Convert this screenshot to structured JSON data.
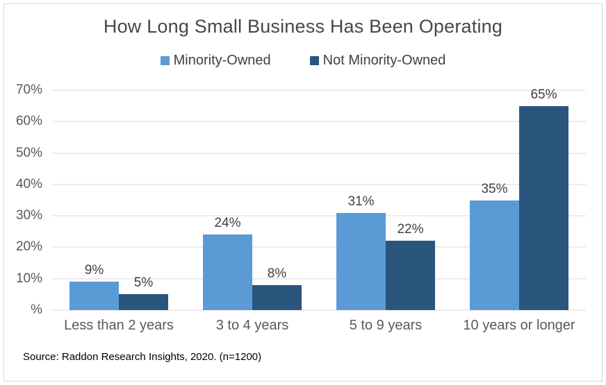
{
  "chart_data": {
    "type": "bar",
    "title": "How Long Small Business Has Been Operating",
    "categories": [
      "Less than 2 years",
      "3 to 4 years",
      "5 to 9 years",
      "10 years or longer"
    ],
    "series": [
      {
        "name": "Minority-Owned",
        "color": "#5B9BD5",
        "values": [
          9,
          24,
          31,
          35
        ],
        "labels": [
          "9%",
          "24%",
          "31%",
          "35%"
        ]
      },
      {
        "name": "Not Minority-Owned",
        "color": "#2A567E",
        "values": [
          5,
          8,
          22,
          65
        ],
        "labels": [
          "5%",
          "8%",
          "22%",
          "65%"
        ]
      }
    ],
    "ylim": [
      0,
      70
    ],
    "yticks": [
      {
        "value": 70,
        "label": "70%"
      },
      {
        "value": 60,
        "label": "60%"
      },
      {
        "value": 50,
        "label": "50%"
      },
      {
        "value": 40,
        "label": "40%"
      },
      {
        "value": 30,
        "label": "30%"
      },
      {
        "value": 20,
        "label": "20%"
      },
      {
        "value": 10,
        "label": "10%"
      },
      {
        "value": 0,
        "label": "%"
      }
    ],
    "grid": true,
    "legend_position": "top",
    "gridline_color": "#D9D9D9"
  },
  "source_note": "Source: Raddon Research Insights, 2020. (n=1200)"
}
